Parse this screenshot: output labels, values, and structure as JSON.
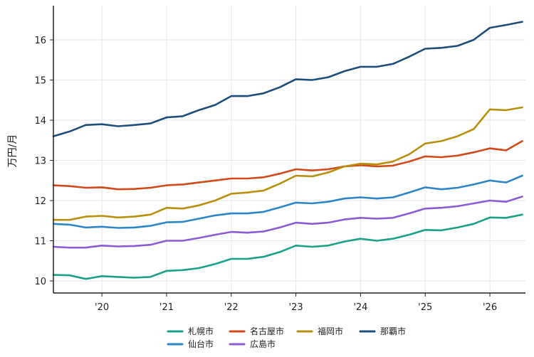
{
  "chart_data": {
    "type": "line",
    "title": "",
    "xlabel": "",
    "ylabel": "万円/月",
    "xlim": [
      2019.25,
      2026.55
    ],
    "ylim": [
      9.7,
      16.85
    ],
    "x_ticks": [
      2020,
      2021,
      2022,
      2023,
      2024,
      2025,
      2026
    ],
    "x_tick_labels": [
      "'20",
      "'21",
      "'22",
      "'23",
      "'24",
      "'25",
      "'26"
    ],
    "y_ticks": [
      10,
      11,
      12,
      13,
      14,
      15,
      16
    ],
    "y_tick_labels": [
      "10",
      "11",
      "12",
      "13",
      "14",
      "15",
      "16"
    ],
    "grid": true,
    "legend_position": "bottom-center",
    "series": [
      {
        "name": "札幌市",
        "color": "#1aa187",
        "points": [
          [
            2019.25,
            10.15
          ],
          [
            2019.5,
            10.14
          ],
          [
            2019.75,
            10.05
          ],
          [
            2020.0,
            10.12
          ],
          [
            2020.25,
            10.1
          ],
          [
            2020.5,
            10.08
          ],
          [
            2020.75,
            10.1
          ],
          [
            2021.0,
            10.25
          ],
          [
            2021.25,
            10.27
          ],
          [
            2021.5,
            10.32
          ],
          [
            2021.75,
            10.42
          ],
          [
            2022.0,
            10.55
          ],
          [
            2022.25,
            10.55
          ],
          [
            2022.5,
            10.6
          ],
          [
            2022.75,
            10.72
          ],
          [
            2023.0,
            10.88
          ],
          [
            2023.25,
            10.85
          ],
          [
            2023.5,
            10.88
          ],
          [
            2023.75,
            10.98
          ],
          [
            2024.0,
            11.05
          ],
          [
            2024.25,
            11.0
          ],
          [
            2024.5,
            11.05
          ],
          [
            2024.75,
            11.15
          ],
          [
            2025.0,
            11.27
          ],
          [
            2025.25,
            11.26
          ],
          [
            2025.5,
            11.33
          ],
          [
            2025.75,
            11.42
          ],
          [
            2026.0,
            11.58
          ],
          [
            2026.25,
            11.57
          ],
          [
            2026.5,
            11.65
          ]
        ]
      },
      {
        "name": "仙台市",
        "color": "#2e86c8",
        "points": [
          [
            2019.25,
            11.42
          ],
          [
            2019.5,
            11.4
          ],
          [
            2019.75,
            11.33
          ],
          [
            2020.0,
            11.35
          ],
          [
            2020.25,
            11.32
          ],
          [
            2020.5,
            11.33
          ],
          [
            2020.75,
            11.37
          ],
          [
            2021.0,
            11.46
          ],
          [
            2021.25,
            11.47
          ],
          [
            2021.5,
            11.55
          ],
          [
            2021.75,
            11.63
          ],
          [
            2022.0,
            11.68
          ],
          [
            2022.25,
            11.68
          ],
          [
            2022.5,
            11.72
          ],
          [
            2022.75,
            11.83
          ],
          [
            2023.0,
            11.95
          ],
          [
            2023.25,
            11.93
          ],
          [
            2023.5,
            11.97
          ],
          [
            2023.75,
            12.05
          ],
          [
            2024.0,
            12.08
          ],
          [
            2024.25,
            12.05
          ],
          [
            2024.5,
            12.08
          ],
          [
            2024.75,
            12.2
          ],
          [
            2025.0,
            12.33
          ],
          [
            2025.25,
            12.28
          ],
          [
            2025.5,
            12.32
          ],
          [
            2025.75,
            12.4
          ],
          [
            2026.0,
            12.5
          ],
          [
            2026.25,
            12.45
          ],
          [
            2026.5,
            12.62
          ]
        ]
      },
      {
        "name": "名古屋市",
        "color": "#d24a1c",
        "points": [
          [
            2019.25,
            12.38
          ],
          [
            2019.5,
            12.36
          ],
          [
            2019.75,
            12.32
          ],
          [
            2020.0,
            12.33
          ],
          [
            2020.25,
            12.28
          ],
          [
            2020.5,
            12.29
          ],
          [
            2020.75,
            12.32
          ],
          [
            2021.0,
            12.38
          ],
          [
            2021.25,
            12.4
          ],
          [
            2021.5,
            12.45
          ],
          [
            2021.75,
            12.5
          ],
          [
            2022.0,
            12.55
          ],
          [
            2022.25,
            12.55
          ],
          [
            2022.5,
            12.58
          ],
          [
            2022.75,
            12.67
          ],
          [
            2023.0,
            12.78
          ],
          [
            2023.25,
            12.75
          ],
          [
            2023.5,
            12.78
          ],
          [
            2023.75,
            12.85
          ],
          [
            2024.0,
            12.88
          ],
          [
            2024.25,
            12.85
          ],
          [
            2024.5,
            12.87
          ],
          [
            2024.75,
            12.97
          ],
          [
            2025.0,
            13.1
          ],
          [
            2025.25,
            13.08
          ],
          [
            2025.5,
            13.12
          ],
          [
            2025.75,
            13.2
          ],
          [
            2026.0,
            13.3
          ],
          [
            2026.25,
            13.25
          ],
          [
            2026.5,
            13.48
          ]
        ]
      },
      {
        "name": "広島市",
        "color": "#8b5cd6",
        "points": [
          [
            2019.25,
            10.85
          ],
          [
            2019.5,
            10.83
          ],
          [
            2019.75,
            10.83
          ],
          [
            2020.0,
            10.88
          ],
          [
            2020.25,
            10.86
          ],
          [
            2020.5,
            10.87
          ],
          [
            2020.75,
            10.9
          ],
          [
            2021.0,
            11.0
          ],
          [
            2021.25,
            11.0
          ],
          [
            2021.5,
            11.07
          ],
          [
            2021.75,
            11.15
          ],
          [
            2022.0,
            11.22
          ],
          [
            2022.25,
            11.2
          ],
          [
            2022.5,
            11.23
          ],
          [
            2022.75,
            11.33
          ],
          [
            2023.0,
            11.45
          ],
          [
            2023.25,
            11.42
          ],
          [
            2023.5,
            11.45
          ],
          [
            2023.75,
            11.53
          ],
          [
            2024.0,
            11.57
          ],
          [
            2024.25,
            11.55
          ],
          [
            2024.5,
            11.57
          ],
          [
            2024.75,
            11.68
          ],
          [
            2025.0,
            11.8
          ],
          [
            2025.25,
            11.82
          ],
          [
            2025.5,
            11.86
          ],
          [
            2025.75,
            11.93
          ],
          [
            2026.0,
            12.0
          ],
          [
            2026.25,
            11.97
          ],
          [
            2026.5,
            12.1
          ]
        ]
      },
      {
        "name": "福岡市",
        "color": "#b8900f",
        "points": [
          [
            2019.25,
            11.52
          ],
          [
            2019.5,
            11.52
          ],
          [
            2019.75,
            11.6
          ],
          [
            2020.0,
            11.62
          ],
          [
            2020.25,
            11.58
          ],
          [
            2020.5,
            11.6
          ],
          [
            2020.75,
            11.65
          ],
          [
            2021.0,
            11.82
          ],
          [
            2021.25,
            11.8
          ],
          [
            2021.5,
            11.88
          ],
          [
            2021.75,
            12.0
          ],
          [
            2022.0,
            12.17
          ],
          [
            2022.25,
            12.2
          ],
          [
            2022.5,
            12.25
          ],
          [
            2022.75,
            12.42
          ],
          [
            2023.0,
            12.62
          ],
          [
            2023.25,
            12.6
          ],
          [
            2023.5,
            12.7
          ],
          [
            2023.75,
            12.85
          ],
          [
            2024.0,
            12.92
          ],
          [
            2024.25,
            12.9
          ],
          [
            2024.5,
            12.97
          ],
          [
            2024.75,
            13.15
          ],
          [
            2025.0,
            13.42
          ],
          [
            2025.25,
            13.48
          ],
          [
            2025.5,
            13.6
          ],
          [
            2025.75,
            13.78
          ],
          [
            2026.0,
            14.27
          ],
          [
            2026.25,
            14.25
          ],
          [
            2026.5,
            14.32
          ]
        ]
      },
      {
        "name": "那覇市",
        "color": "#1f4e7a",
        "points": [
          [
            2019.25,
            13.6
          ],
          [
            2019.5,
            13.72
          ],
          [
            2019.75,
            13.88
          ],
          [
            2020.0,
            13.9
          ],
          [
            2020.25,
            13.85
          ],
          [
            2020.5,
            13.88
          ],
          [
            2020.75,
            13.92
          ],
          [
            2021.0,
            14.07
          ],
          [
            2021.25,
            14.1
          ],
          [
            2021.5,
            14.25
          ],
          [
            2021.75,
            14.38
          ],
          [
            2022.0,
            14.6
          ],
          [
            2022.25,
            14.6
          ],
          [
            2022.5,
            14.67
          ],
          [
            2022.75,
            14.82
          ],
          [
            2023.0,
            15.02
          ],
          [
            2023.25,
            15.0
          ],
          [
            2023.5,
            15.07
          ],
          [
            2023.75,
            15.22
          ],
          [
            2024.0,
            15.33
          ],
          [
            2024.25,
            15.33
          ],
          [
            2024.5,
            15.4
          ],
          [
            2024.75,
            15.58
          ],
          [
            2025.0,
            15.78
          ],
          [
            2025.25,
            15.8
          ],
          [
            2025.5,
            15.85
          ],
          [
            2025.75,
            16.0
          ],
          [
            2026.0,
            16.3
          ],
          [
            2026.25,
            16.37
          ],
          [
            2026.5,
            16.45
          ]
        ]
      }
    ],
    "legend_order": [
      "札幌市",
      "名古屋市",
      "福岡市",
      "那覇市",
      "仙台市",
      "広島市"
    ]
  }
}
